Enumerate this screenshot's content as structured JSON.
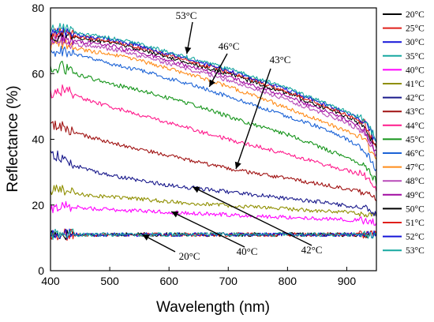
{
  "chart_data": {
    "type": "line",
    "xlabel": "Wavelength (nm)",
    "ylabel": "Reflectance (%)",
    "xlim": [
      400,
      950
    ],
    "ylim": [
      0,
      80
    ],
    "xticks": [
      400,
      500,
      600,
      700,
      800,
      900
    ],
    "yticks": [
      0,
      20,
      40,
      60,
      80
    ],
    "grid": false,
    "legend_position": "right",
    "x": [
      400,
      420,
      440,
      460,
      480,
      500,
      550,
      600,
      650,
      700,
      750,
      800,
      850,
      900,
      930,
      950
    ],
    "series": [
      {
        "name": "20°C",
        "color": "#000000",
        "values": [
          11,
          11,
          11,
          11,
          11,
          11,
          11,
          11,
          11,
          11,
          11,
          11,
          11,
          11,
          11,
          11
        ]
      },
      {
        "name": "25°C",
        "color": "#e0201b",
        "values": [
          11,
          11,
          11,
          11,
          11,
          11,
          11,
          11,
          11,
          11,
          11,
          11,
          11,
          11,
          11,
          11
        ]
      },
      {
        "name": "30°C",
        "color": "#1515d8",
        "values": [
          11,
          11,
          11,
          11,
          11,
          11,
          11,
          11,
          11,
          11,
          11,
          11,
          11,
          11,
          11,
          11
        ]
      },
      {
        "name": "35°C",
        "color": "#17a8a0",
        "values": [
          11,
          11,
          11,
          11,
          11,
          11,
          11,
          11,
          11,
          11,
          11,
          11,
          11,
          11,
          11,
          11
        ]
      },
      {
        "name": "40°C",
        "color": "#ff00ff",
        "values": [
          18,
          20,
          19.5,
          19,
          18.8,
          18.6,
          18.2,
          17.8,
          17.4,
          17,
          16.6,
          16.3,
          15.9,
          15.5,
          15.2,
          14.8
        ]
      },
      {
        "name": "41°C",
        "color": "#8f8f00",
        "values": [
          24,
          25,
          23.5,
          23,
          22.8,
          22.5,
          21.8,
          21,
          20.4,
          19.8,
          19.3,
          18.8,
          18.3,
          17.8,
          17.4,
          17
        ]
      },
      {
        "name": "42°C",
        "color": "#1a1a8c",
        "values": [
          36,
          34,
          32,
          31,
          30,
          29,
          27.5,
          26,
          25,
          24,
          23,
          22,
          21,
          19.8,
          19,
          17
        ]
      },
      {
        "name": "43°C",
        "color": "#a01212",
        "values": [
          44,
          44,
          42,
          41,
          40,
          39,
          37,
          35,
          33,
          31,
          29.5,
          28,
          26.5,
          25,
          24,
          22
        ]
      },
      {
        "name": "44°C",
        "color": "#ff1a8c",
        "values": [
          54,
          55,
          54,
          52,
          51,
          50,
          47.5,
          45,
          42.5,
          40,
          37.8,
          35.5,
          33,
          30.5,
          29,
          25
        ]
      },
      {
        "name": "45°C",
        "color": "#15941a",
        "values": [
          61,
          62,
          60,
          59,
          58,
          57,
          55,
          52.5,
          50,
          47,
          44,
          41.5,
          38,
          34.5,
          32,
          27
        ]
      },
      {
        "name": "46°C",
        "color": "#1c63d6",
        "values": [
          66,
          67,
          66,
          65,
          64,
          63,
          61,
          58.5,
          56,
          53,
          50,
          47,
          44,
          40,
          37,
          30
        ]
      },
      {
        "name": "47°C",
        "color": "#ff8c1a",
        "values": [
          68,
          69,
          68,
          67,
          66.5,
          66,
          64,
          61.5,
          59,
          56,
          53,
          49.5,
          46,
          42.5,
          40,
          33
        ]
      },
      {
        "name": "48°C",
        "color": "#b84ab8",
        "values": [
          70,
          70,
          69,
          68.5,
          68,
          67.5,
          65.5,
          63,
          60.5,
          58,
          55,
          52,
          48.5,
          45,
          42,
          35
        ]
      },
      {
        "name": "49°C",
        "color": "#a00aa0",
        "values": [
          71,
          71,
          70,
          69.5,
          69,
          68.5,
          66.5,
          64,
          61.5,
          59,
          56,
          53,
          49.5,
          46,
          43,
          36
        ]
      },
      {
        "name": "50°C",
        "color": "#000000",
        "values": [
          71,
          72,
          71,
          70.5,
          70,
          69.5,
          67.5,
          65,
          62.5,
          60,
          57,
          54,
          50.5,
          47,
          44,
          37
        ]
      },
      {
        "name": "51°C",
        "color": "#e0201b",
        "values": [
          72,
          72.5,
          71.5,
          71,
          70.5,
          70,
          68,
          65.5,
          63,
          60.5,
          57.5,
          54.5,
          51,
          47.5,
          45,
          38
        ]
      },
      {
        "name": "52°C",
        "color": "#1515d8",
        "values": [
          72.5,
          73,
          72,
          71.5,
          71,
          70.5,
          68.5,
          66,
          63.5,
          61,
          58,
          55,
          51.5,
          48,
          45.5,
          39
        ]
      },
      {
        "name": "53°C",
        "color": "#17a8a0",
        "values": [
          73,
          74,
          72.5,
          72,
          71.5,
          71,
          69,
          66.5,
          64,
          61.5,
          58.5,
          55.5,
          52,
          48.5,
          46,
          40
        ]
      }
    ],
    "annotations": [
      {
        "text": "53°C",
        "target_x": 630,
        "target_y": 66
      },
      {
        "text": "46°C",
        "target_x": 668,
        "target_y": 56
      },
      {
        "text": "43°C",
        "target_x": 713,
        "target_y": 31
      },
      {
        "text": "42°C",
        "target_x": 640,
        "target_y": 25.5
      },
      {
        "text": "40°C",
        "target_x": 604,
        "target_y": 18
      },
      {
        "text": "20°C",
        "target_x": 555,
        "target_y": 11
      }
    ]
  }
}
